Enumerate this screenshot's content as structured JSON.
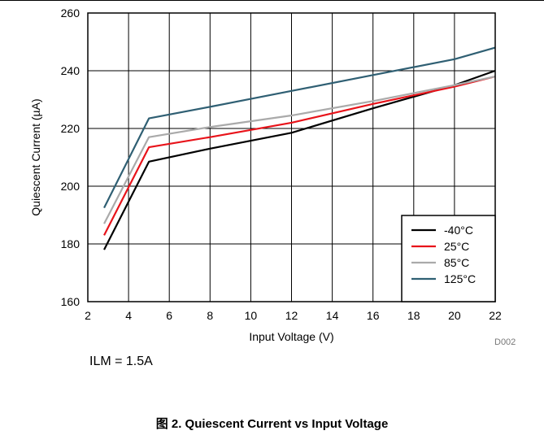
{
  "chart_data": {
    "type": "line",
    "ylabel": "Quiescent Current (µA)",
    "xlabel": "Input Voltage (V)",
    "xlim": [
      2,
      22
    ],
    "ylim": [
      160,
      260
    ],
    "xticks": [
      "2",
      "4",
      "6",
      "8",
      "10",
      "12",
      "14",
      "16",
      "18",
      "20",
      "22"
    ],
    "yticks": [
      "160",
      "180",
      "200",
      "220",
      "240",
      "260"
    ],
    "grid": true,
    "legend_position": "bottom-right",
    "series": [
      {
        "name": "-40°C",
        "color": "#000000",
        "x": [
          2.8,
          5,
          8,
          12,
          16,
          20,
          22
        ],
        "y": [
          178,
          208.5,
          213,
          218.5,
          227,
          235,
          240
        ]
      },
      {
        "name": "25°C",
        "color": "#e8131a",
        "x": [
          2.8,
          5,
          8,
          12,
          16,
          20,
          22
        ],
        "y": [
          183,
          213.5,
          217,
          222,
          228.5,
          234.5,
          238
        ]
      },
      {
        "name": "85°C",
        "color": "#aaaaaa",
        "x": [
          2.8,
          5,
          8,
          12,
          16,
          20,
          22
        ],
        "y": [
          187,
          217,
          220.5,
          224.5,
          229.5,
          235,
          238
        ]
      },
      {
        "name": "125°C",
        "color": "#2f5f73",
        "x": [
          2.8,
          5,
          8,
          12,
          16,
          20,
          22
        ],
        "y": [
          192.5,
          223.5,
          227.5,
          233,
          238.5,
          244,
          248
        ]
      }
    ]
  },
  "figure_code": "D002",
  "note": "ILM = 1.5A",
  "caption": "图 2. Quiescent Current vs Input Voltage"
}
